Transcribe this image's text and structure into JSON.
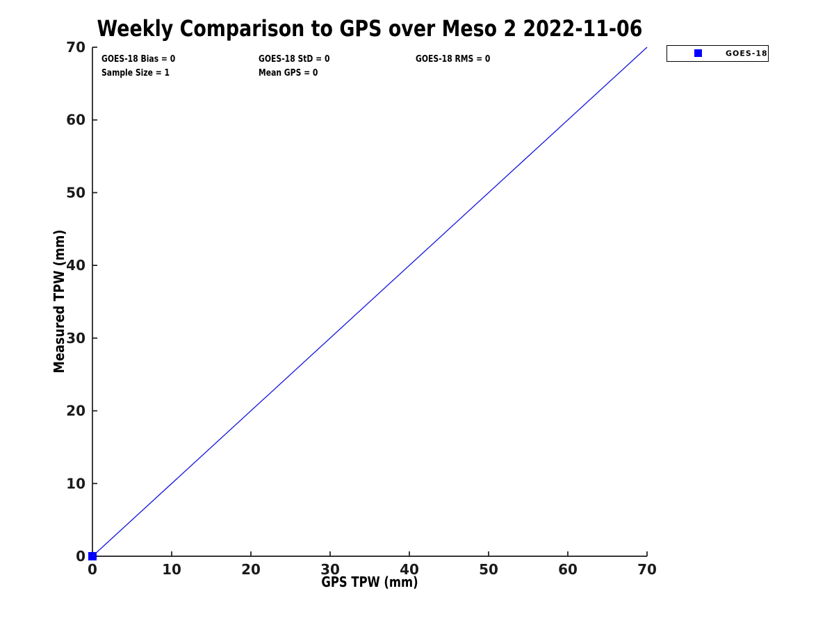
{
  "figure": {
    "title": "Weekly Comparison to GPS over Meso 2 2022-11-06",
    "xlabel": "GPS TPW (mm)",
    "ylabel": "Measured TPW (mm)"
  },
  "stats": {
    "bias": "GOES-18 Bias = 0",
    "std": "GOES-18 StD = 0",
    "rms": "GOES-18 RMS = 0",
    "sample_size": "Sample Size = 1",
    "mean_gps": "Mean GPS = 0"
  },
  "legend": {
    "position": "outside-top-right",
    "items": [
      {
        "label": "GOES-18",
        "marker": "square",
        "marker_color": "#0000ff"
      }
    ]
  },
  "colors": {
    "line": "#1414dc",
    "marker": "#0000ff",
    "axis": "#1a1a1a",
    "text": "#000000",
    "background": "#ffffff"
  },
  "chart_data": {
    "type": "scatter",
    "title": "Weekly Comparison to GPS over Meso 2 2022-11-06",
    "xlabel": "GPS TPW (mm)",
    "ylabel": "Measured TPW (mm)",
    "xlim": [
      0,
      70
    ],
    "ylim": [
      0,
      70
    ],
    "xticks": [
      0,
      10,
      20,
      30,
      40,
      50,
      60,
      70
    ],
    "yticks": [
      0,
      10,
      20,
      30,
      40,
      50,
      60,
      70
    ],
    "grid": false,
    "legend_position": "top-right-outside",
    "series": [
      {
        "name": "GOES-18",
        "type": "scatter",
        "marker": "square",
        "color": "#0000ff",
        "points": [
          [
            0,
            0
          ]
        ]
      },
      {
        "name": "identity-line",
        "type": "line",
        "color": "#1414dc",
        "x": [
          0,
          70
        ],
        "y": [
          0,
          70
        ]
      }
    ],
    "annotations": [
      "GOES-18 Bias = 0",
      "GOES-18 StD = 0",
      "GOES-18 RMS = 0",
      "Sample Size = 1",
      "Mean GPS = 0"
    ]
  }
}
